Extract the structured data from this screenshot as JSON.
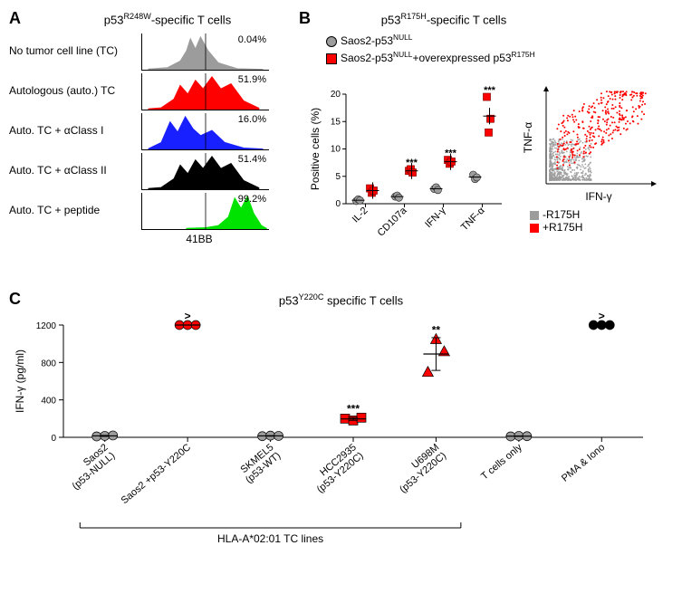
{
  "panelA": {
    "label": "A",
    "title_prefix": "p53",
    "title_sup": "R248W",
    "title_suffix": "-specific T cells",
    "xaxis": "41BB",
    "rows": [
      {
        "label": "No tumor cell line (TC)",
        "pct": "0.04%",
        "color": "#9c9c9c",
        "shape": "center"
      },
      {
        "label": "Autologous (auto.) TC",
        "pct": "51.9%",
        "color": "#ff0000",
        "shape": "right"
      },
      {
        "label": "Auto. TC + αClass I",
        "pct": "16.0%",
        "color": "#1920ff",
        "shape": "leftish"
      },
      {
        "label": "Auto. TC + αClass II",
        "pct": "51.4%",
        "color": "#000000",
        "shape": "right"
      },
      {
        "label": "Auto. TC + peptide",
        "pct": "99.2%",
        "color": "#00e200",
        "shape": "farRight"
      }
    ],
    "gate_line_x": 0.5
  },
  "panelB": {
    "label": "B",
    "title_prefix": "p53",
    "title_sup": "R175H",
    "title_suffix": "-specific T cells",
    "legend": [
      {
        "marker": "circle",
        "color": "#9c9c9c",
        "label_html": "Saos2-p53<span class='sup'>NULL</span>"
      },
      {
        "marker": "square",
        "color": "#ff0000",
        "label_html": "Saos2-p53<span class='sup'>NULL</span>+overexpressed p53<span class='sup'>R175H</span>"
      }
    ],
    "yaxis": "Positive cells (%)",
    "categories": [
      "IL-2",
      "CD107a",
      "IFN-γ",
      "TNF-α"
    ],
    "ylim": [
      0,
      20
    ],
    "yticks": [
      0,
      5,
      10,
      15,
      20
    ],
    "gray_values": [
      [
        0.5,
        0.8,
        0.6
      ],
      [
        1.3,
        1.5,
        1.1
      ],
      [
        2.7,
        3.0,
        2.5
      ],
      [
        5.3,
        4.5,
        4.8
      ]
    ],
    "red_values": [
      [
        2.8,
        2.0,
        2.4
      ],
      [
        6.0,
        6.3,
        5.7
      ],
      [
        8.0,
        7.3,
        7.7
      ],
      [
        19.5,
        13.0,
        15.5
      ]
    ],
    "sig": [
      "",
      "***",
      "***",
      "***"
    ],
    "scatter": {
      "xlabel": "IFN-γ",
      "ylabel": "TNF-α",
      "legend": [
        {
          "color": "#9c9c9c",
          "marker": "square",
          "label": "-R175H"
        },
        {
          "color": "#ff0000",
          "marker": "square",
          "label": "+R175H"
        }
      ]
    },
    "colors": {
      "gray": "#9c9c9c",
      "red": "#ff0000"
    }
  },
  "panelC": {
    "label": "C",
    "title_prefix": "p53",
    "title_sup": "Y220C",
    "title_suffix": " specific T cells",
    "yaxis": "IFN-γ (pg/ml)",
    "ylim": [
      0,
      1200
    ],
    "yticks": [
      0,
      400,
      800,
      1200
    ],
    "bracket_label": "HLA-A*02:01 TC lines",
    "groups": [
      {
        "label": "Saos2 (p53-NULL)",
        "values": [
          10,
          15,
          20
        ],
        "color": "#9c9c9c",
        "marker": "circle",
        "sig": ""
      },
      {
        "label": "Saos2 +p53-Y220C",
        "values": [
          1200,
          1200,
          1200
        ],
        "color": "#ff0000",
        "marker": "circle",
        "sig": ">"
      },
      {
        "label": "SKMEL5 (p53-WT)",
        "values": [
          12,
          18,
          15
        ],
        "color": "#9c9c9c",
        "marker": "circle",
        "sig": ""
      },
      {
        "label": "HCC2935 (p53-Y220C)",
        "values": [
          200,
          180,
          210
        ],
        "color": "#ff0000",
        "marker": "square",
        "sig": "***"
      },
      {
        "label": "U698M (p53-Y220C)",
        "values": [
          700,
          1050,
          920
        ],
        "color": "#ff0000",
        "marker": "triangle",
        "sig": "**"
      },
      {
        "label": "T cells only",
        "values": [
          10,
          15,
          12
        ],
        "color": "#9c9c9c",
        "marker": "circle",
        "sig": ""
      },
      {
        "label": "PMA & Iono",
        "values": [
          1200,
          1200,
          1200
        ],
        "color": "#000000",
        "marker": "circle",
        "sig": ">"
      }
    ]
  }
}
